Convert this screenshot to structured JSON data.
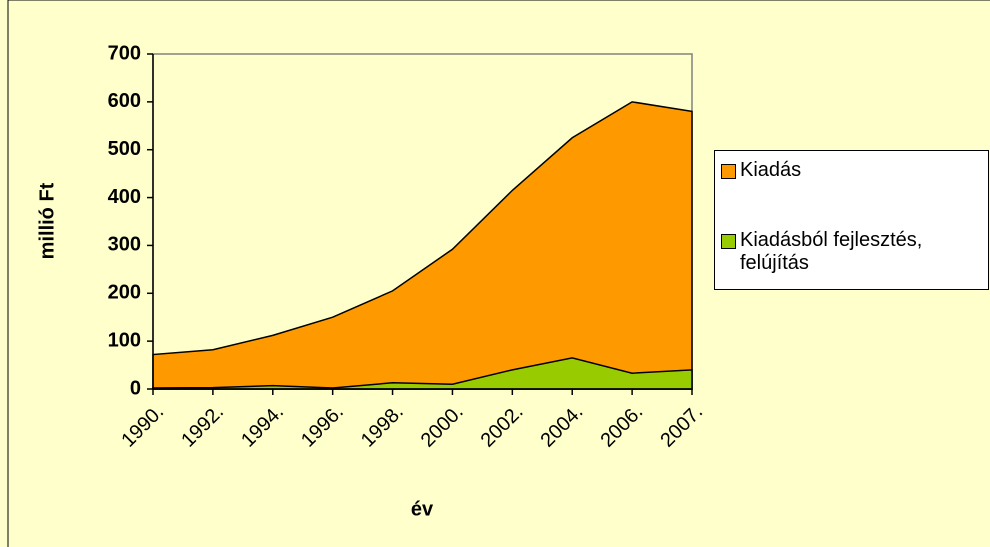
{
  "chart_data": {
    "type": "area",
    "categories": [
      "1990.",
      "1992.",
      "1994.",
      "1996.",
      "1998.",
      "2000.",
      "2002.",
      "2004.",
      "2006.",
      "2007."
    ],
    "series": [
      {
        "name": "Kiadás",
        "color": "#ff9900",
        "values": [
          72,
          82,
          112,
          150,
          205,
          292,
          415,
          525,
          600,
          580
        ]
      },
      {
        "name": "Kiadásból fejlesztés, felújítás",
        "color": "#99cc00",
        "values": [
          2,
          3,
          7,
          2,
          13,
          10,
          40,
          65,
          33,
          40
        ]
      }
    ],
    "ylim": [
      0,
      700
    ],
    "yticks": [
      0,
      100,
      200,
      300,
      400,
      500,
      600,
      700
    ],
    "y_label": "millió Ft",
    "x_label": "év",
    "legend": "right"
  }
}
